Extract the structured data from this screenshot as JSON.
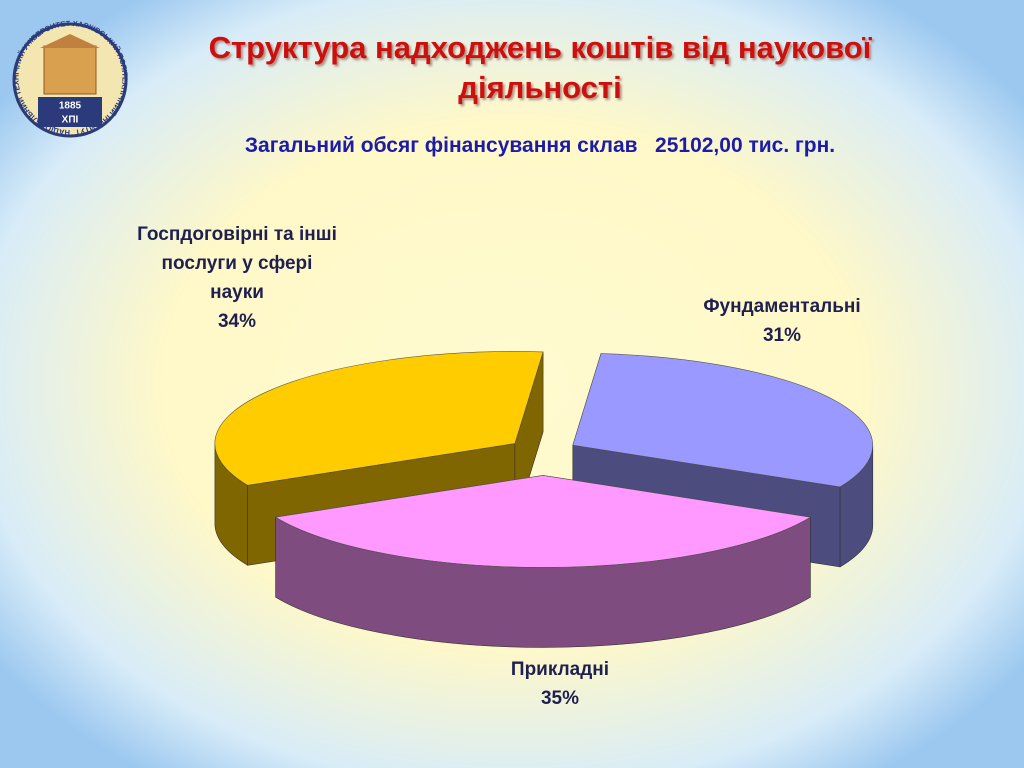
{
  "logo": {
    "ring_text": "НАЦІОНАЛЬНИЙ ТЕХНІЧНИЙ УНІВЕРСИТЕТ ХАРКІВСЬКИЙ ПОЛІТЕХНІЧНИЙ ІНСТИТУТ",
    "year": "1885",
    "abbr": "ХПІ"
  },
  "chart_data": {
    "type": "pie",
    "title": "Структура надходжень коштів від наукової діяльності",
    "subtitle": "Загальний обсяг фінансування склав   25102,00 тис. грн.",
    "categories": [
      "Прикладні",
      "Госпдоговірні та інші послуги у сфері науки",
      "Фундаментальні"
    ],
    "values": [
      35,
      34,
      31
    ],
    "value_labels": [
      "35%",
      "34%",
      "31%"
    ],
    "colors": [
      "#ff99ff",
      "#ffcc00",
      "#9999ff"
    ]
  }
}
